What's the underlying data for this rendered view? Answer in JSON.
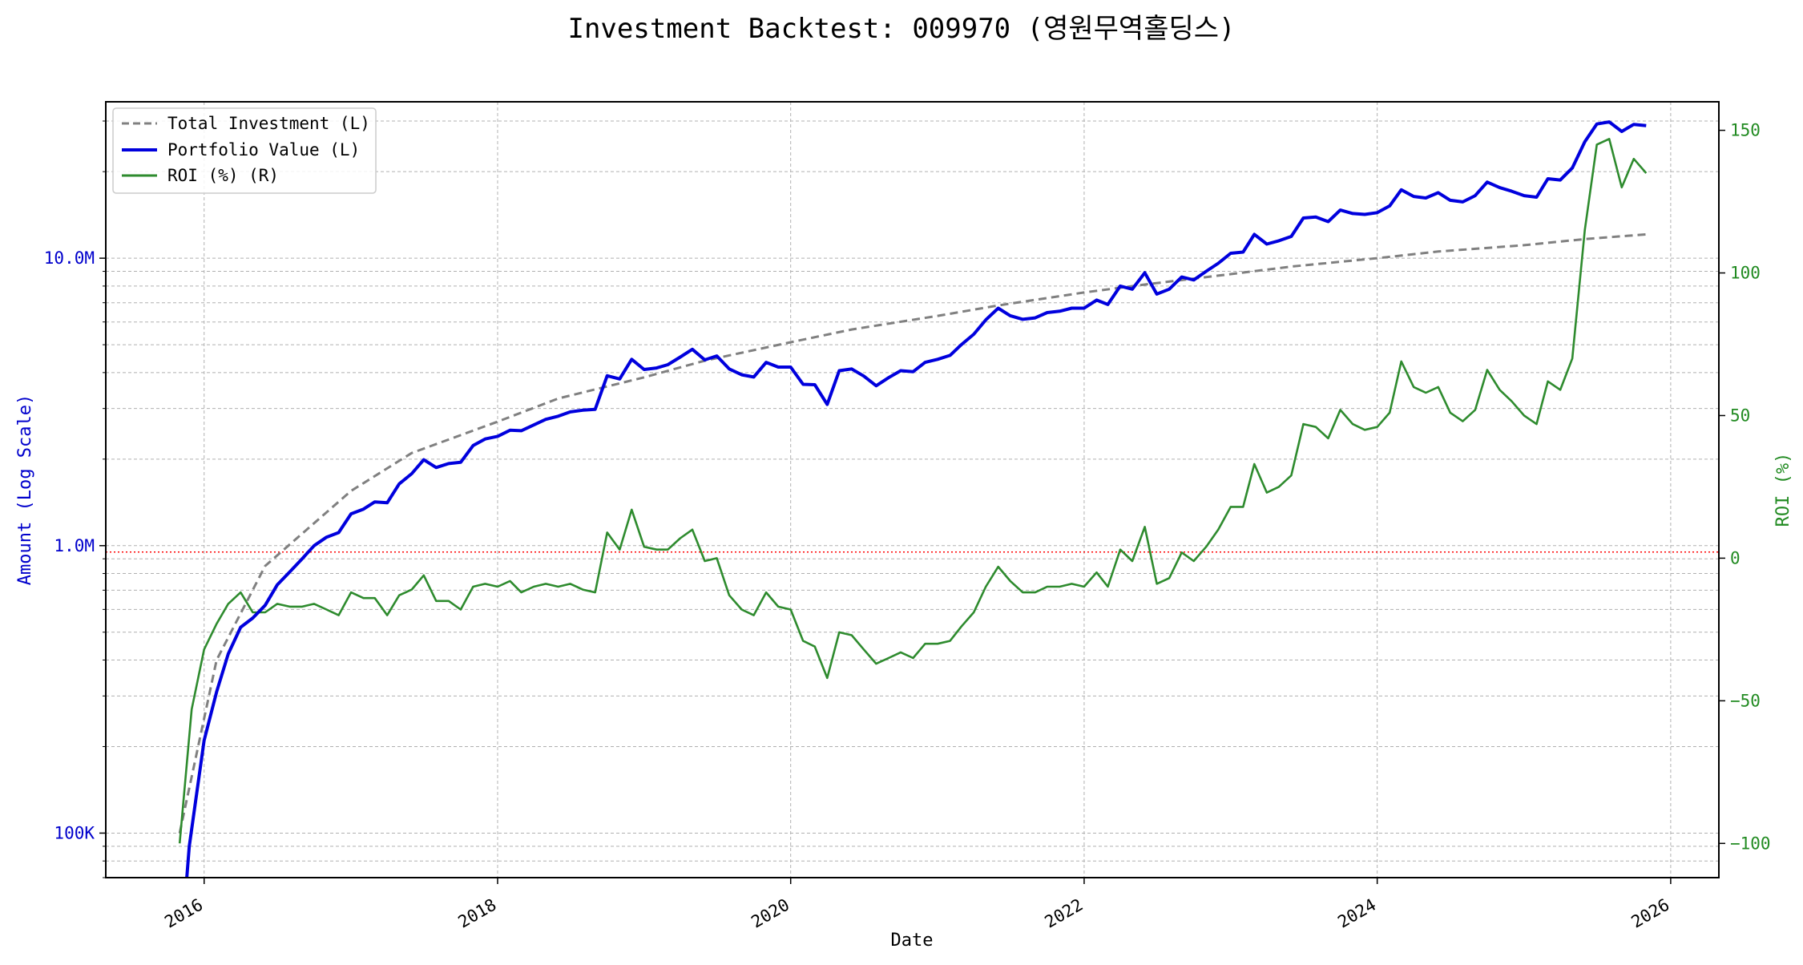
{
  "chart_data": {
    "type": "line",
    "title": "Investment Backtest: 009970 (영원무역홀딩스)",
    "xlabel": "Date",
    "ylabel_left": "Amount (Log Scale)",
    "ylabel_right": "ROI (%)",
    "x_ticks": [
      "2016",
      "2018",
      "2020",
      "2022",
      "2024",
      "2026"
    ],
    "y_left_scale": "log",
    "y_left_range": [
      70000,
      35000000
    ],
    "y_left_ticks": [
      {
        "value": 100000,
        "label": "100K"
      },
      {
        "value": 1000000,
        "label": "1.0M"
      },
      {
        "value": 10000000,
        "label": "10.0M"
      }
    ],
    "y_right_range": [
      -112,
      160
    ],
    "y_right_ticks": [
      {
        "value": 150,
        "label": "150"
      },
      {
        "value": 100,
        "label": "100"
      },
      {
        "value": 50,
        "label": "50"
      },
      {
        "value": 0,
        "label": "0"
      },
      {
        "value": -50,
        "label": "−50"
      },
      {
        "value": -100,
        "label": "−100"
      }
    ],
    "x_range": [
      "2015-05-01",
      "2026-05-01"
    ],
    "grid": true,
    "legend_position": "top-left",
    "reference_line": {
      "axis": "left",
      "value": 950000,
      "color": "#ff0000",
      "style": "dotted"
    },
    "colors": {
      "total_investment": "#808080",
      "portfolio_value": "#0000dd",
      "roi": "#2e8b2e",
      "left_axis": "#0000cc",
      "right_axis": "#228b22"
    },
    "series": [
      {
        "name": "Total Investment (L)",
        "axis": "left",
        "style": "dashed",
        "color": "#808080",
        "x": [
          "2015-11-01",
          "2016-02-01",
          "2016-06-01",
          "2017-01-01",
          "2017-06-01",
          "2018-01-01",
          "2018-06-01",
          "2019-01-01",
          "2019-06-01",
          "2020-01-01",
          "2020-06-01",
          "2021-01-01",
          "2021-06-01",
          "2022-01-01",
          "2022-06-01",
          "2023-01-01",
          "2023-06-01",
          "2024-01-01",
          "2024-06-01",
          "2025-01-01",
          "2025-06-01",
          "2025-11-01"
        ],
        "y": [
          100000,
          400000,
          850000,
          1550000,
          2100000,
          2700000,
          3250000,
          3850000,
          4400000,
          5100000,
          5650000,
          6300000,
          6850000,
          7600000,
          8100000,
          8800000,
          9350000,
          10000000,
          10550000,
          11100000,
          11650000,
          12100000
        ]
      },
      {
        "name": "Portfolio Value (L)",
        "axis": "left",
        "style": "solid",
        "color": "#0000dd",
        "x": [
          "2015-11-15",
          "2015-11-25",
          "2016-01-01",
          "2016-02-01",
          "2016-03-01",
          "2016-04-01",
          "2016-05-01",
          "2016-06-01",
          "2016-07-01",
          "2016-08-01",
          "2016-09-01",
          "2016-10-01",
          "2016-11-01",
          "2016-12-01",
          "2017-01-01",
          "2017-02-01",
          "2017-03-01",
          "2017-04-01",
          "2017-05-01",
          "2017-06-01",
          "2017-07-01",
          "2017-08-01",
          "2017-09-01",
          "2017-10-01",
          "2017-11-01",
          "2017-12-01",
          "2018-01-01",
          "2018-02-01",
          "2018-03-01",
          "2018-04-01",
          "2018-05-01",
          "2018-06-01",
          "2018-07-01",
          "2018-08-01",
          "2018-09-01",
          "2018-10-01",
          "2018-11-01",
          "2018-12-01",
          "2019-01-01",
          "2019-02-01",
          "2019-03-01",
          "2019-04-01",
          "2019-05-01",
          "2019-06-01",
          "2019-07-01",
          "2019-08-01",
          "2019-09-01",
          "2019-10-01",
          "2019-11-01",
          "2019-12-01",
          "2020-01-01",
          "2020-02-01",
          "2020-03-01",
          "2020-04-01",
          "2020-05-01",
          "2020-06-01",
          "2020-07-01",
          "2020-08-01",
          "2020-09-01",
          "2020-10-01",
          "2020-11-01",
          "2020-12-01",
          "2021-01-01",
          "2021-02-01",
          "2021-03-01",
          "2021-04-01",
          "2021-05-01",
          "2021-06-01",
          "2021-07-01",
          "2021-08-01",
          "2021-09-01",
          "2021-10-01",
          "2021-11-01",
          "2021-12-01",
          "2022-01-01",
          "2022-02-01",
          "2022-03-01",
          "2022-04-01",
          "2022-05-01",
          "2022-06-01",
          "2022-07-01",
          "2022-08-01",
          "2022-09-01",
          "2022-10-01",
          "2022-11-01",
          "2022-12-01",
          "2023-01-01",
          "2023-02-01",
          "2023-03-01",
          "2023-04-01",
          "2023-05-01",
          "2023-06-01",
          "2023-07-01",
          "2023-08-01",
          "2023-09-01",
          "2023-10-01",
          "2023-11-01",
          "2023-12-01",
          "2024-01-01",
          "2024-02-01",
          "2024-03-01",
          "2024-04-01",
          "2024-05-01",
          "2024-06-01",
          "2024-07-01",
          "2024-08-01",
          "2024-09-01",
          "2024-10-01",
          "2024-11-01",
          "2024-12-01",
          "2025-01-01",
          "2025-02-01",
          "2025-03-01",
          "2025-04-01",
          "2025-05-01",
          "2025-06-01",
          "2025-07-01",
          "2025-08-01",
          "2025-09-01",
          "2025-10-01",
          "2025-11-01"
        ],
        "y": [
          60000,
          90000,
          210000,
          310000,
          420000,
          520000,
          560000,
          620000,
          730000,
          810000,
          900000,
          1000000,
          1070000,
          1110000,
          1290000,
          1340000,
          1420000,
          1410000,
          1640000,
          1780000,
          1990000,
          1870000,
          1930000,
          1950000,
          2230000,
          2350000,
          2400000,
          2520000,
          2510000,
          2630000,
          2750000,
          2820000,
          2920000,
          2960000,
          2980000,
          3900000,
          3800000,
          4450000,
          4100000,
          4150000,
          4260000,
          4530000,
          4820000,
          4430000,
          4570000,
          4120000,
          3930000,
          3860000,
          4340000,
          4180000,
          4180000,
          3640000,
          3630000,
          3100000,
          4060000,
          4120000,
          3890000,
          3600000,
          3840000,
          4060000,
          4030000,
          4340000,
          4450000,
          4590000,
          5000000,
          5440000,
          6100000,
          6700000,
          6310000,
          6130000,
          6200000,
          6470000,
          6540000,
          6700000,
          6700000,
          7150000,
          6900000,
          8000000,
          7800000,
          8900000,
          7500000,
          7800000,
          8600000,
          8400000,
          9000000,
          9600000,
          10400000,
          10500000,
          12100000,
          11200000,
          11500000,
          11900000,
          13800000,
          13900000,
          13400000,
          14700000,
          14300000,
          14200000,
          14400000,
          15200000,
          17300000,
          16400000,
          16200000,
          16900000,
          15900000,
          15700000,
          16500000,
          18400000,
          17600000,
          17100000,
          16500000,
          16300000,
          18900000,
          18700000,
          20600000,
          25400000,
          29300000,
          29800000,
          27600000,
          29200000,
          28900000
        ]
      },
      {
        "name": "ROI (%) (R)",
        "axis": "right",
        "style": "solid",
        "color": "#2e8b2e",
        "x": [
          "2015-11-01",
          "2015-12-01",
          "2016-01-01",
          "2016-02-01",
          "2016-03-01",
          "2016-04-01",
          "2016-05-01",
          "2016-06-01",
          "2016-07-01",
          "2016-08-01",
          "2016-09-01",
          "2016-10-01",
          "2016-11-01",
          "2016-12-01",
          "2017-01-01",
          "2017-02-01",
          "2017-03-01",
          "2017-04-01",
          "2017-05-01",
          "2017-06-01",
          "2017-07-01",
          "2017-08-01",
          "2017-09-01",
          "2017-10-01",
          "2017-11-01",
          "2017-12-01",
          "2018-01-01",
          "2018-02-01",
          "2018-03-01",
          "2018-04-01",
          "2018-05-01",
          "2018-06-01",
          "2018-07-01",
          "2018-08-01",
          "2018-09-01",
          "2018-10-01",
          "2018-11-01",
          "2018-12-01",
          "2019-01-01",
          "2019-02-01",
          "2019-03-01",
          "2019-04-01",
          "2019-05-01",
          "2019-06-01",
          "2019-07-01",
          "2019-08-01",
          "2019-09-01",
          "2019-10-01",
          "2019-11-01",
          "2019-12-01",
          "2020-01-01",
          "2020-02-01",
          "2020-03-01",
          "2020-04-01",
          "2020-05-01",
          "2020-06-01",
          "2020-07-01",
          "2020-08-01",
          "2020-09-01",
          "2020-10-01",
          "2020-11-01",
          "2020-12-01",
          "2021-01-01",
          "2021-02-01",
          "2021-03-01",
          "2021-04-01",
          "2021-05-01",
          "2021-06-01",
          "2021-07-01",
          "2021-08-01",
          "2021-09-01",
          "2021-10-01",
          "2021-11-01",
          "2021-12-01",
          "2022-01-01",
          "2022-02-01",
          "2022-03-01",
          "2022-04-01",
          "2022-05-01",
          "2022-06-01",
          "2022-07-01",
          "2022-08-01",
          "2022-09-01",
          "2022-10-01",
          "2022-11-01",
          "2022-12-01",
          "2023-01-01",
          "2023-02-01",
          "2023-03-01",
          "2023-04-01",
          "2023-05-01",
          "2023-06-01",
          "2023-07-01",
          "2023-08-01",
          "2023-09-01",
          "2023-10-01",
          "2023-11-01",
          "2023-12-01",
          "2024-01-01",
          "2024-02-01",
          "2024-03-01",
          "2024-04-01",
          "2024-05-01",
          "2024-06-01",
          "2024-07-01",
          "2024-08-01",
          "2024-09-01",
          "2024-10-01",
          "2024-11-01",
          "2024-12-01",
          "2025-01-01",
          "2025-02-01",
          "2025-03-01",
          "2025-04-01",
          "2025-05-01",
          "2025-06-01",
          "2025-07-01",
          "2025-08-01",
          "2025-09-01",
          "2025-10-01",
          "2025-11-01"
        ],
        "y": [
          -100,
          -53,
          -32,
          -23,
          -16,
          -12,
          -19,
          -19,
          -16,
          -17,
          -17,
          -16,
          -18,
          -20,
          -12,
          -14,
          -14,
          -20,
          -13,
          -11,
          -6,
          -15,
          -15,
          -18,
          -10,
          -9,
          -10,
          -8,
          -12,
          -10,
          -9,
          -10,
          -9,
          -11,
          -12,
          9,
          3,
          17,
          4,
          3,
          3,
          7,
          10,
          -1,
          0,
          -13,
          -18,
          -20,
          -12,
          -17,
          -18,
          -29,
          -31,
          -42,
          -26,
          -27,
          -32,
          -37,
          -35,
          -33,
          -35,
          -30,
          -30,
          -29,
          -24,
          -19,
          -10,
          -3,
          -8,
          -12,
          -12,
          -10,
          -10,
          -9,
          -10,
          -5,
          -10,
          3,
          -1,
          11,
          -9,
          -7,
          2,
          -1,
          4,
          10,
          18,
          18,
          33,
          23,
          25,
          29,
          47,
          46,
          42,
          52,
          47,
          45,
          46,
          51,
          69,
          60,
          58,
          60,
          51,
          48,
          52,
          66,
          59,
          55,
          50,
          47,
          62,
          59,
          70,
          115,
          145,
          147,
          130,
          140,
          135
        ]
      }
    ]
  }
}
